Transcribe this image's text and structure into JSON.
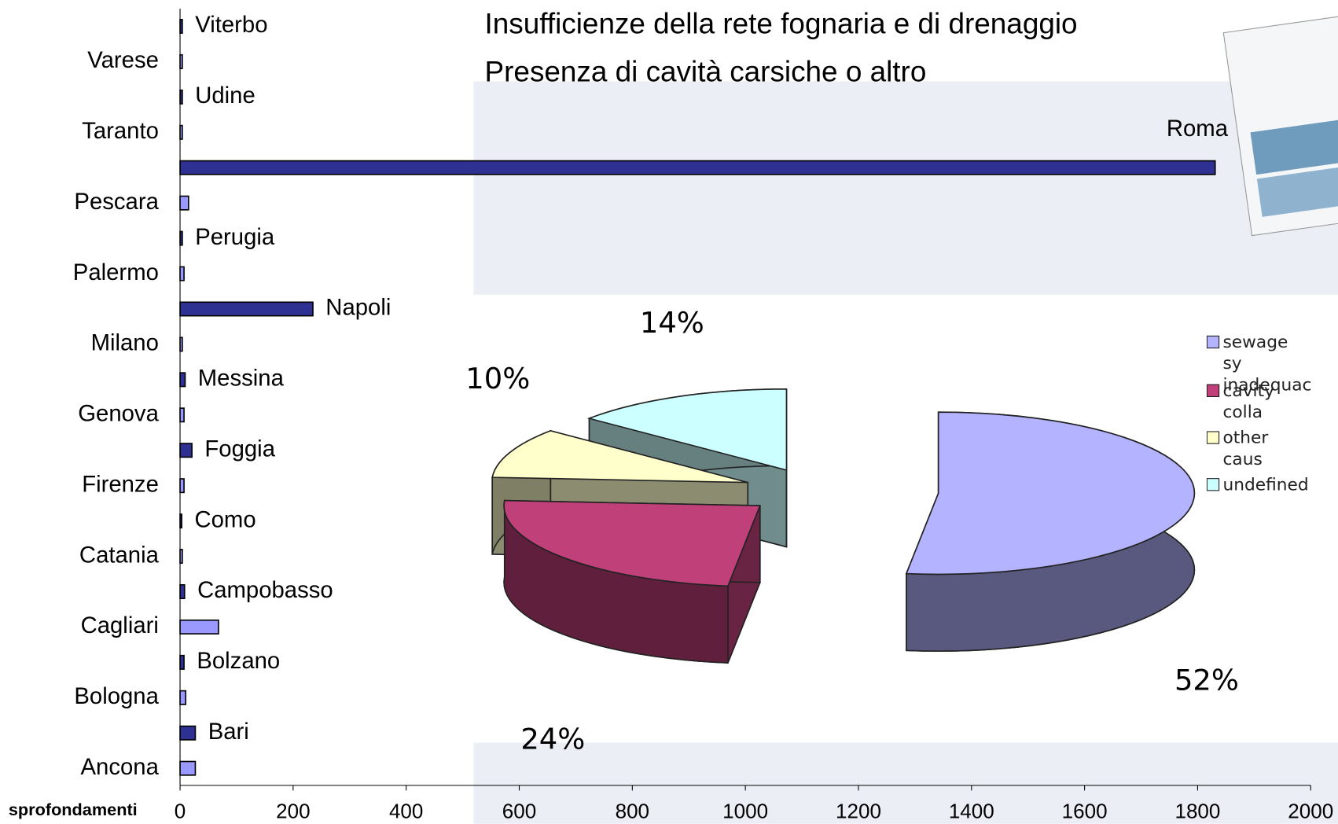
{
  "chart_data": [
    {
      "type": "bar",
      "orientation": "horizontal",
      "title": "Insufficienze della rete fognaria e di drenaggio",
      "subtitle": "Presenza di cavità carsiche o altro",
      "x_label": "sprofondamenti",
      "categories": [
        "Ancona",
        "Bari",
        "Bologna",
        "Bolzano",
        "Cagliari",
        "Campobasso",
        "Catania",
        "Como",
        "Firenze",
        "Foggia",
        "Genova",
        "Messina",
        "Milano",
        "Napoli",
        "Palermo",
        "Perugia",
        "Pescara",
        "Roma",
        "Taranto",
        "Udine",
        "Varese",
        "Viterbo"
      ],
      "values": [
        27,
        27,
        10,
        7,
        68,
        8,
        4,
        3,
        7,
        21,
        7,
        9,
        4,
        235,
        7,
        4,
        15,
        1831,
        4,
        4,
        4,
        4
      ],
      "colors": [
        "#9999ff",
        "#2e3192"
      ],
      "xlim": [
        0,
        2000
      ],
      "xticks": [
        0,
        200,
        400,
        600,
        800,
        1000,
        1200,
        1400,
        1600,
        1800,
        2000
      ]
    },
    {
      "type": "pie",
      "categories": [
        "sewage sy inadequac",
        "cavity colla",
        "other caus",
        "undefined"
      ],
      "values": [
        52,
        24,
        10,
        14
      ],
      "value_labels": [
        "52%",
        "24%",
        "10%",
        "14%"
      ],
      "colors": [
        "#b3b3ff",
        "#c0407a",
        "#ffffcc",
        "#ccffff"
      ]
    }
  ]
}
